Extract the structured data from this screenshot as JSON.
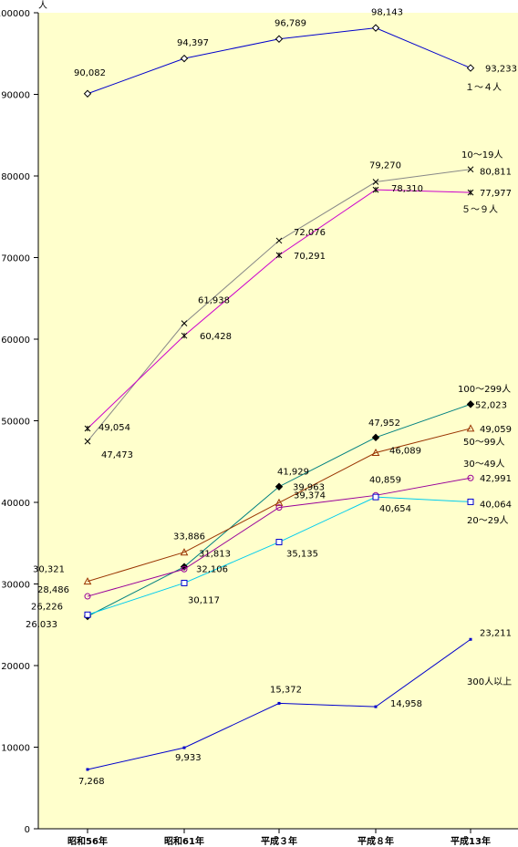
{
  "chart_data": {
    "type": "line",
    "y_unit_label": "人",
    "categories": [
      "昭和56年",
      "昭和61年",
      "平成３年",
      "平成８年",
      "平成13年"
    ],
    "ylim": [
      0,
      100000
    ],
    "yticks": [
      0,
      10000,
      20000,
      30000,
      40000,
      50000,
      60000,
      70000,
      80000,
      90000,
      100000
    ],
    "grid": false,
    "plot_background": "#FFFFCC",
    "series": [
      {
        "name": "１～４人",
        "values": [
          90082,
          94397,
          96789,
          98143,
          93233
        ],
        "labels": [
          "90,082",
          "94,397",
          "96,789",
          "98,143",
          "93,233"
        ],
        "color": "#0000CC",
        "marker": "diamond-open"
      },
      {
        "name": "10～19人",
        "values": [
          47473,
          61938,
          72076,
          79270,
          80811
        ],
        "labels": [
          "47,473",
          "61,938",
          "72,076",
          "79,270",
          "80,811"
        ],
        "color": "#888888",
        "marker": "x"
      },
      {
        "name": "５～９人",
        "values": [
          49054,
          60428,
          70291,
          78310,
          77977
        ],
        "labels": [
          "49,054",
          "60,428",
          "70,291",
          "78,310",
          "77,977"
        ],
        "color": "#CC00CC",
        "marker": "asterisk"
      },
      {
        "name": "100～299人",
        "values": [
          26033,
          32106,
          41929,
          47952,
          52023
        ],
        "labels": [
          "26,033",
          "32,106",
          "41,929",
          "47,952",
          "52,023"
        ],
        "color": "#008080",
        "marker": "diamond-filled"
      },
      {
        "name": "50～99人",
        "values": [
          30321,
          33886,
          39963,
          46089,
          49059
        ],
        "labels": [
          "30,321",
          "33,886",
          "39,963",
          "46,089",
          "49,059"
        ],
        "color": "#993300",
        "marker": "triangle-open"
      },
      {
        "name": "30～49人",
        "values": [
          28486,
          31813,
          39374,
          40859,
          42991
        ],
        "labels": [
          "28,486",
          "31,813",
          "39,374",
          "40,859",
          "42,991"
        ],
        "color": "#990099",
        "marker": "circle-open"
      },
      {
        "name": "20～29人",
        "values": [
          26226,
          30117,
          35135,
          40654,
          40064
        ],
        "labels": [
          "26,226",
          "30,117",
          "35,135",
          "40,654",
          "40,064"
        ],
        "color": "#00CCEE",
        "marker": "square-open"
      },
      {
        "name": "300人以上",
        "values": [
          7268,
          9933,
          15372,
          14958,
          23211
        ],
        "labels": [
          "7,268",
          "9,933",
          "15,372",
          "14,958",
          "23,211"
        ],
        "color": "#0000CC",
        "marker": "dot"
      }
    ]
  }
}
